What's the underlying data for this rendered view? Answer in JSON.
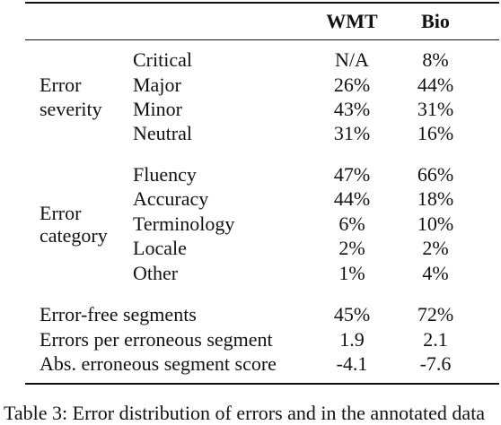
{
  "table": {
    "headers": {
      "wmt": "WMT",
      "bio": "Bio"
    },
    "groups": [
      {
        "label_line1": "Error",
        "label_line2": "severity",
        "rows": [
          {
            "label": "Critical",
            "wmt": "N/A",
            "bio": "8%"
          },
          {
            "label": "Major",
            "wmt": "26%",
            "bio": "44%"
          },
          {
            "label": "Minor",
            "wmt": "43%",
            "bio": "31%"
          },
          {
            "label": "Neutral",
            "wmt": "31%",
            "bio": "16%"
          }
        ]
      },
      {
        "label_line1": "Error",
        "label_line2": "category",
        "rows": [
          {
            "label": "Fluency",
            "wmt": "47%",
            "bio": "66%"
          },
          {
            "label": "Accuracy",
            "wmt": "44%",
            "bio": "18%"
          },
          {
            "label": "Terminology",
            "wmt": "6%",
            "bio": "10%"
          },
          {
            "label": "Locale",
            "wmt": "2%",
            "bio": "2%"
          },
          {
            "label": "Other",
            "wmt": "1%",
            "bio": "4%"
          }
        ]
      }
    ],
    "summary": [
      {
        "label": "Error-free segments",
        "wmt": "45%",
        "bio": "72%"
      },
      {
        "label": "Errors per erroneous segment",
        "wmt": "1.9",
        "bio": "2.1"
      },
      {
        "label": "Abs. erroneous segment score",
        "wmt": "-4.1",
        "bio": "-7.6"
      }
    ]
  },
  "caption": "Table 3: Error distribution of errors and in the annotated data"
}
